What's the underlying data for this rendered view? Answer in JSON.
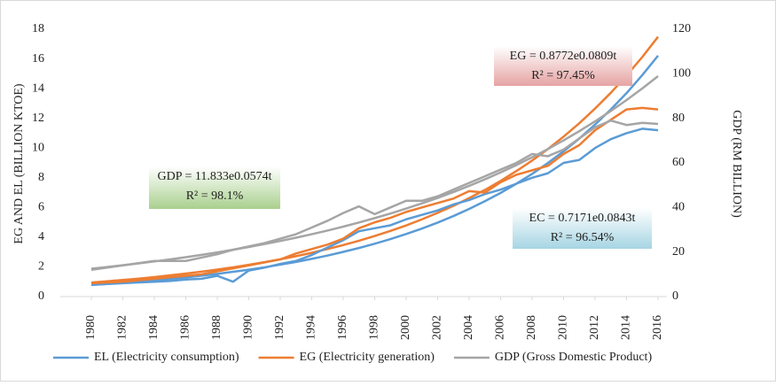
{
  "chart_data": {
    "type": "line",
    "y_label": "EG AND EL (BILLION KTOE)",
    "y2_label": "GDP (RM BILLION)",
    "x": [
      1980,
      1981,
      1982,
      1983,
      1984,
      1985,
      1986,
      1987,
      1988,
      1989,
      1990,
      1991,
      1992,
      1993,
      1994,
      1995,
      1996,
      1997,
      1998,
      1999,
      2000,
      2001,
      2002,
      2003,
      2004,
      2005,
      2006,
      2007,
      2008,
      2009,
      2010,
      2011,
      2012,
      2013,
      2014,
      2015,
      2016
    ],
    "xlim": [
      1980,
      2016
    ],
    "xticks": [
      1980,
      1982,
      1984,
      1986,
      1988,
      1990,
      1992,
      1994,
      1996,
      1998,
      2000,
      2002,
      2004,
      2006,
      2008,
      2010,
      2012,
      2014,
      2016
    ],
    "ylim": [
      0,
      18
    ],
    "yticks": [
      0,
      2,
      4,
      6,
      8,
      10,
      12,
      14,
      16,
      18
    ],
    "y2lim": [
      0,
      120
    ],
    "y2ticks": [
      0,
      20,
      40,
      60,
      80,
      100,
      120
    ],
    "grid": false,
    "legend": "bottom",
    "series": [
      {
        "name": "EL (Electricity consumption)",
        "color": "#5b9bd5",
        "values": [
          0.8,
          0.85,
          0.9,
          0.95,
          1.0,
          1.05,
          1.15,
          1.2,
          1.4,
          1.0,
          1.75,
          1.95,
          2.2,
          2.4,
          2.8,
          3.3,
          3.8,
          4.4,
          4.6,
          4.8,
          5.2,
          5.5,
          5.8,
          6.2,
          6.5,
          6.9,
          7.2,
          7.6,
          8.0,
          8.3,
          9.0,
          9.2,
          10.0,
          10.6,
          11.0,
          11.3,
          11.2
        ]
      },
      {
        "name": "EG (Electricity generation)",
        "color": "#ed7d31",
        "values": [
          0.9,
          0.95,
          1.0,
          1.1,
          1.2,
          1.3,
          1.4,
          1.5,
          1.7,
          1.9,
          2.1,
          2.3,
          2.5,
          2.9,
          3.2,
          3.5,
          3.9,
          4.6,
          5.0,
          5.3,
          5.7,
          6.0,
          6.3,
          6.6,
          7.1,
          7.0,
          7.7,
          8.2,
          8.5,
          8.8,
          9.6,
          10.2,
          11.2,
          11.9,
          12.6,
          12.7,
          12.6
        ]
      },
      {
        "name": "GDP (Gross Domestic Product)",
        "color": "#a5a5a5",
        "axis": "y2",
        "values": [
          12,
          13,
          14,
          15,
          16,
          16,
          16,
          17.5,
          19,
          21,
          22.5,
          24,
          26,
          28,
          31,
          34,
          37.5,
          40.5,
          37,
          40,
          43,
          43,
          45,
          48,
          51,
          54,
          57,
          60,
          64,
          63,
          66,
          71,
          76,
          79,
          77,
          78,
          77.5
        ]
      }
    ],
    "trendlines": [
      {
        "color": "#5b9bd5",
        "values": [
          0.78,
          0.85,
          0.92,
          1.0,
          1.09,
          1.19,
          1.29,
          1.41,
          1.53,
          1.67,
          1.81,
          1.97,
          2.15,
          2.33,
          2.54,
          2.76,
          3.01,
          3.27,
          3.56,
          3.87,
          4.21,
          4.58,
          4.98,
          5.42,
          5.9,
          6.42,
          6.98,
          7.6,
          8.26,
          8.99,
          9.78,
          10.64,
          11.58,
          12.6,
          13.7,
          14.91,
          16.22
        ]
      },
      {
        "color": "#ed7d31",
        "values": [
          0.95,
          1.03,
          1.12,
          1.21,
          1.31,
          1.43,
          1.55,
          1.68,
          1.82,
          1.97,
          2.14,
          2.32,
          2.51,
          2.72,
          2.95,
          3.2,
          3.47,
          3.76,
          4.08,
          4.42,
          4.79,
          5.2,
          5.64,
          6.11,
          6.63,
          7.18,
          7.79,
          8.45,
          9.16,
          9.93,
          10.77,
          11.67,
          12.66,
          13.72,
          14.88,
          16.13,
          17.49
        ]
      },
      {
        "color": "#a5a5a5",
        "axis": "y2",
        "values": [
          12.53,
          13.27,
          14.06,
          14.89,
          15.77,
          16.7,
          17.68,
          18.73,
          19.84,
          21.01,
          22.25,
          23.56,
          24.95,
          26.43,
          27.99,
          29.64,
          31.39,
          33.25,
          35.21,
          37.29,
          39.5,
          41.83,
          44.3,
          46.92,
          49.69,
          52.63,
          55.73,
          59.03,
          62.51,
          66.21,
          70.12,
          74.26,
          78.65,
          83.29,
          88.21,
          93.42,
          98.94
        ]
      }
    ],
    "annotations": [
      {
        "lines": [
          "GDP = 11.833e0.0574t",
          "R² = 98.1%"
        ],
        "color": "#a9d08e"
      },
      {
        "lines": [
          "EG = 0.8772e0.0809t",
          "R² = 97.45%"
        ],
        "color": "#e6a3a3"
      },
      {
        "lines": [
          "EC = 0.7171e0.0843t",
          "R² = 96.54%"
        ],
        "color": "#a6d5e3"
      }
    ]
  }
}
